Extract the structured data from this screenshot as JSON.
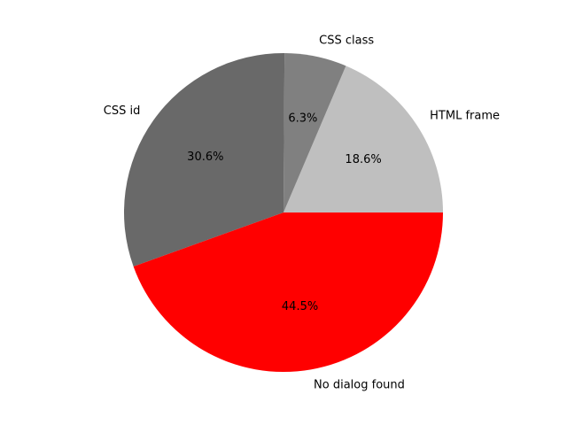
{
  "chart_data": {
    "type": "pie",
    "title": "",
    "direction": "counterclockwise",
    "start_angle_deg": 0,
    "labels": [
      "HTML frame",
      "CSS class",
      "CSS id",
      "No dialog found"
    ],
    "values": [
      18.6,
      6.3,
      30.6,
      44.5
    ],
    "pct_labels": [
      "18.6%",
      "6.3%",
      "30.6%",
      "44.5%"
    ],
    "colors": [
      "#bfbfbf",
      "#808080",
      "#696969",
      "#ff0000"
    ]
  }
}
